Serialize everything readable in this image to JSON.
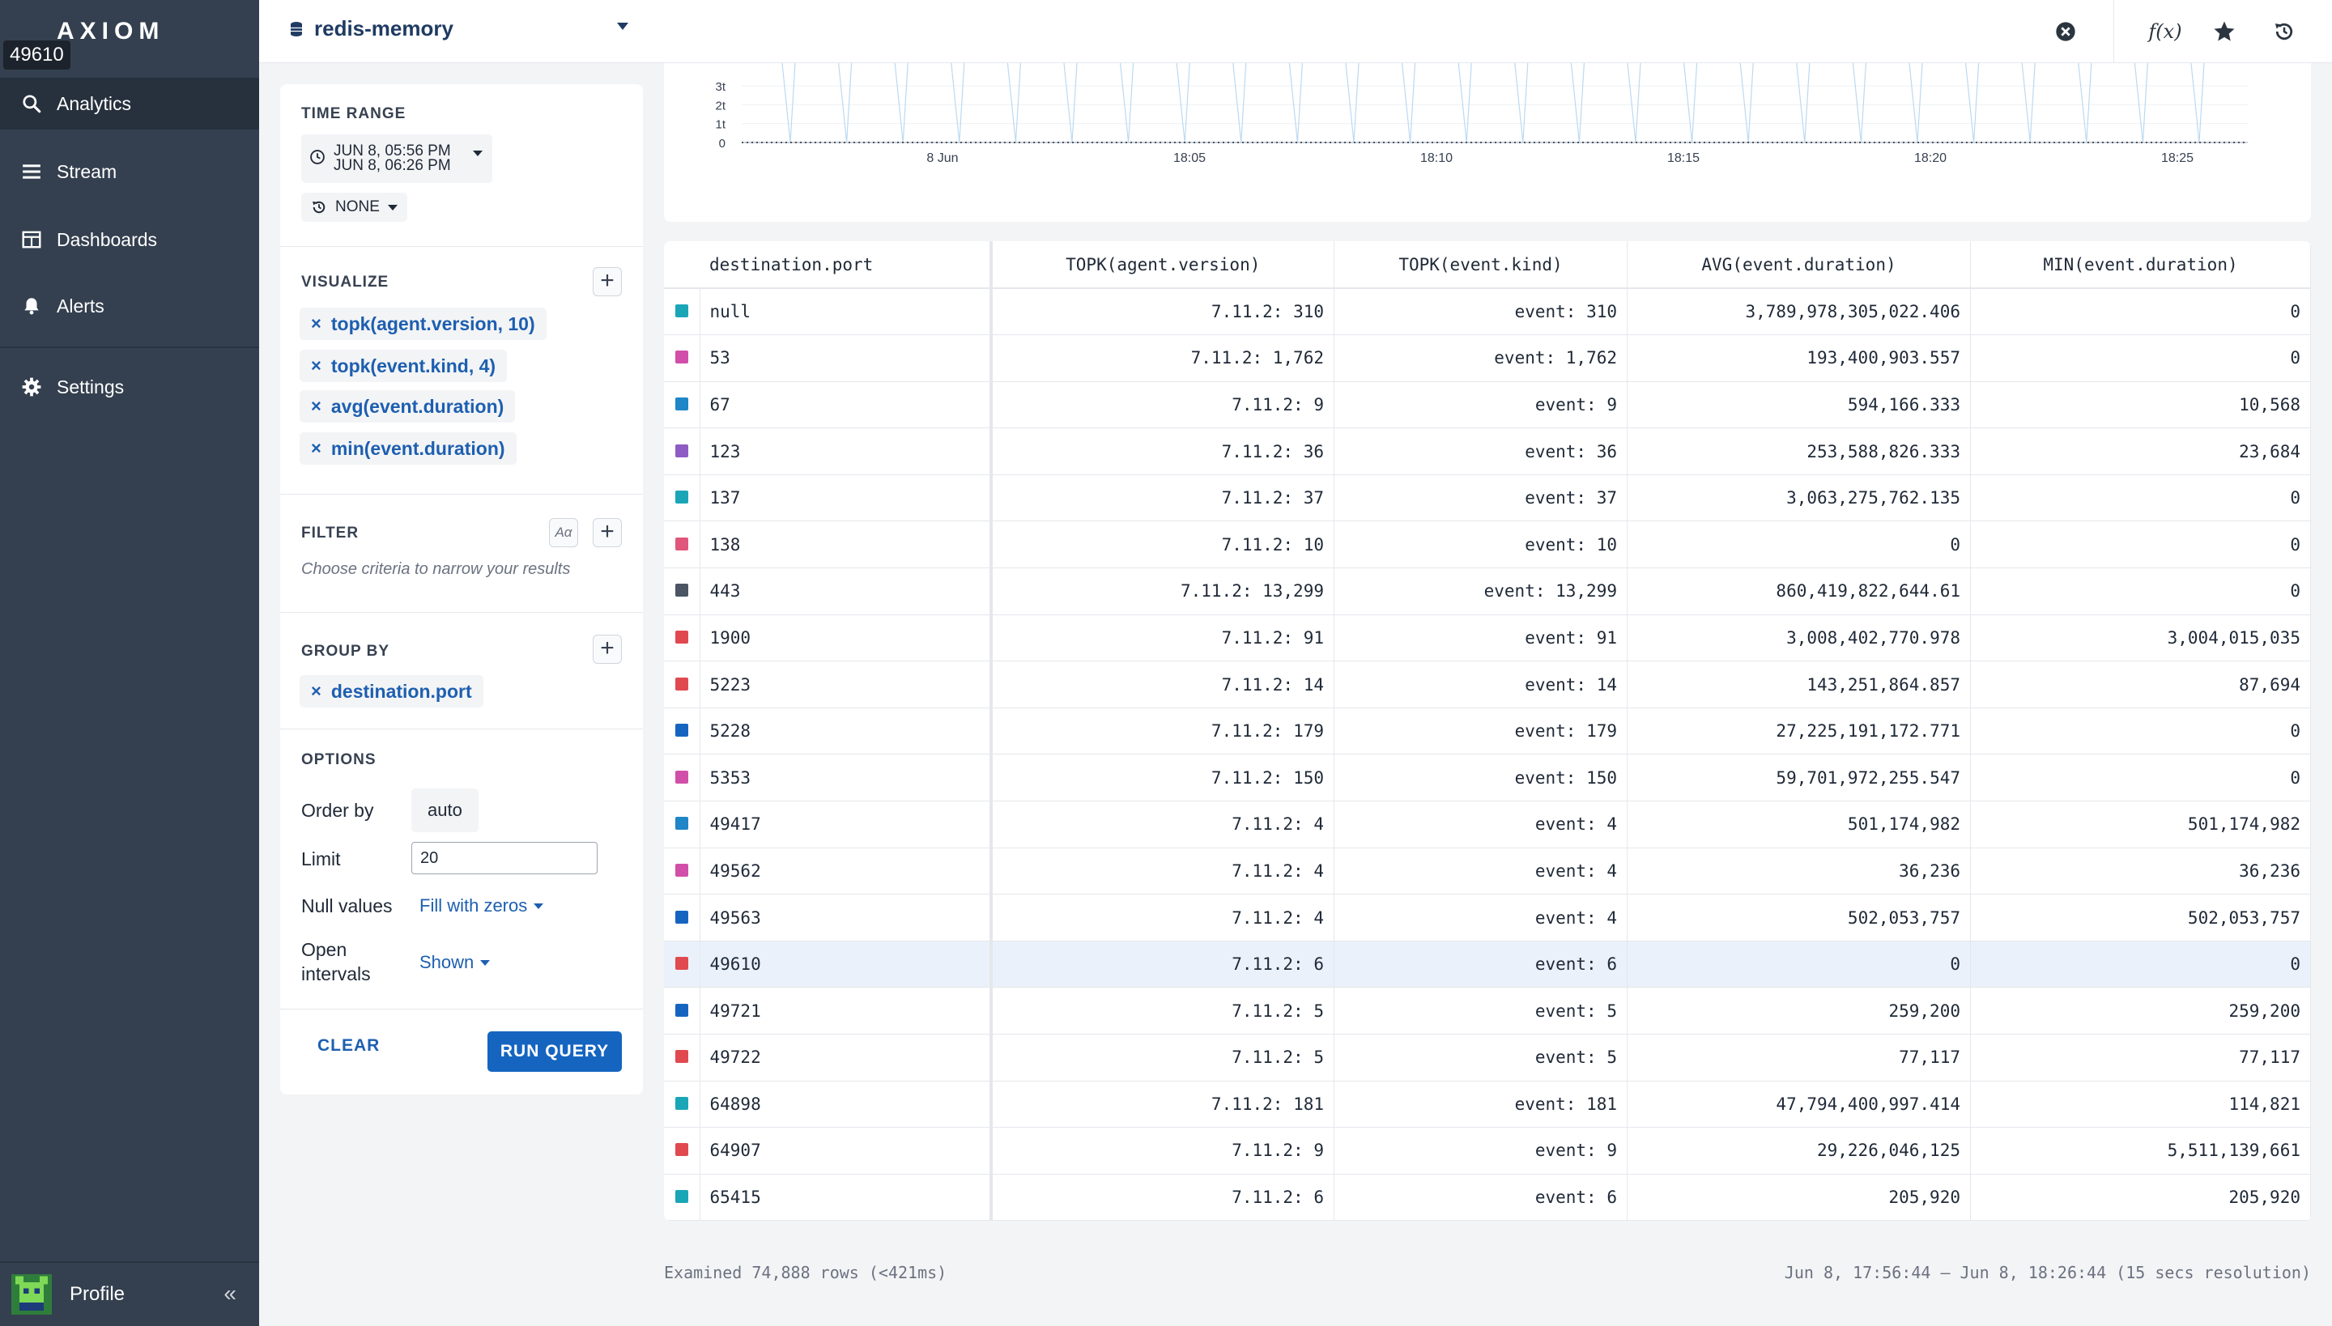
{
  "app": {
    "logo": "AXIOM",
    "tooltip": "49610"
  },
  "sidebar": {
    "items": [
      {
        "label": "Analytics",
        "icon": "search-icon",
        "active": true
      },
      {
        "label": "Stream",
        "icon": "stream-icon"
      },
      {
        "label": "Dashboards",
        "icon": "dashboard-icon"
      },
      {
        "label": "Alerts",
        "icon": "bell-icon"
      },
      {
        "label": "Settings",
        "icon": "gear-icon"
      }
    ],
    "profile_label": "Profile",
    "collapse_glyph": "«"
  },
  "header": {
    "dataset": "redis-memory",
    "icons": [
      "clear-icon",
      "function-icon",
      "star-icon",
      "history-icon"
    ],
    "function_glyph": "f(x)"
  },
  "query": {
    "time_range": {
      "title": "TIME RANGE",
      "start": "JUN 8, 05:56 PM",
      "end": "JUN 8, 06:26 PM",
      "compare": "NONE"
    },
    "visualize": {
      "title": "VISUALIZE",
      "items": [
        "topk(agent.version, 10)",
        "topk(event.kind, 4)",
        "avg(event.duration)",
        "min(event.duration)"
      ]
    },
    "filter": {
      "title": "FILTER",
      "case_label": "Aα",
      "hint": "Choose criteria to narrow your results"
    },
    "group_by": {
      "title": "GROUP BY",
      "items": [
        "destination.port"
      ]
    },
    "options": {
      "title": "OPTIONS",
      "order_by_label": "Order by",
      "order_by_value": "auto",
      "limit_label": "Limit",
      "limit_value": "20",
      "null_label": "Null values",
      "null_value": "Fill with zeros",
      "open_label_1": "Open",
      "open_label_2": "intervals",
      "open_value": "Shown"
    },
    "clear_label": "CLEAR",
    "run_label": "RUN QUERY"
  },
  "chart_data": {
    "type": "line",
    "y_ticks": [
      "3t",
      "2t",
      "1t",
      "0"
    ],
    "x_ticks": [
      "8 Jun",
      "18:05",
      "18:10",
      "18:15",
      "18:20",
      "18:25"
    ],
    "note": ""
  },
  "table": {
    "columns": [
      "destination.port",
      "TOPK(agent.version)",
      "TOPK(event.kind)",
      "AVG(event.duration)",
      "MIN(event.duration)"
    ],
    "rows": [
      {
        "color": "#1aa6b7",
        "port": "null",
        "agent": "7.11.2: 310",
        "kind": "event: 310",
        "avg": "3,789,978,305,022.406",
        "min": "0"
      },
      {
        "color": "#d14fa8",
        "port": "53",
        "agent": "7.11.2: 1,762",
        "kind": "event: 1,762",
        "avg": "193,400,903.557",
        "min": "0"
      },
      {
        "color": "#1f86c7",
        "port": "67",
        "agent": "7.11.2: 9",
        "kind": "event: 9",
        "avg": "594,166.333",
        "min": "10,568"
      },
      {
        "color": "#8e5cc2",
        "port": "123",
        "agent": "7.11.2: 36",
        "kind": "event: 36",
        "avg": "253,588,826.333",
        "min": "23,684"
      },
      {
        "color": "#1aa6b7",
        "port": "137",
        "agent": "7.11.2: 37",
        "kind": "event: 37",
        "avg": "3,063,275,762.135",
        "min": "0"
      },
      {
        "color": "#e0567a",
        "port": "138",
        "agent": "7.11.2: 10",
        "kind": "event: 10",
        "avg": "0",
        "min": "0"
      },
      {
        "color": "#4b5563",
        "port": "443",
        "agent": "7.11.2: 13,299",
        "kind": "event: 13,299",
        "avg": "860,419,822,644.61",
        "min": "0"
      },
      {
        "color": "#e0494f",
        "port": "1900",
        "agent": "7.11.2: 91",
        "kind": "event: 91",
        "avg": "3,008,402,770.978",
        "min": "3,004,015,035"
      },
      {
        "color": "#e0494f",
        "port": "5223",
        "agent": "7.11.2: 14",
        "kind": "event: 14",
        "avg": "143,251,864.857",
        "min": "87,694"
      },
      {
        "color": "#1565c0",
        "port": "5228",
        "agent": "7.11.2: 179",
        "kind": "event: 179",
        "avg": "27,225,191,172.771",
        "min": "0"
      },
      {
        "color": "#d14fa8",
        "port": "5353",
        "agent": "7.11.2: 150",
        "kind": "event: 150",
        "avg": "59,701,972,255.547",
        "min": "0"
      },
      {
        "color": "#1f86c7",
        "port": "49417",
        "agent": "7.11.2: 4",
        "kind": "event: 4",
        "avg": "501,174,982",
        "min": "501,174,982"
      },
      {
        "color": "#d14fa8",
        "port": "49562",
        "agent": "7.11.2: 4",
        "kind": "event: 4",
        "avg": "36,236",
        "min": "36,236"
      },
      {
        "color": "#1565c0",
        "port": "49563",
        "agent": "7.11.2: 4",
        "kind": "event: 4",
        "avg": "502,053,757",
        "min": "502,053,757"
      },
      {
        "color": "#e0494f",
        "port": "49610",
        "agent": "7.11.2: 6",
        "kind": "event: 6",
        "avg": "0",
        "min": "0",
        "highlight": true
      },
      {
        "color": "#1565c0",
        "port": "49721",
        "agent": "7.11.2: 5",
        "kind": "event: 5",
        "avg": "259,200",
        "min": "259,200"
      },
      {
        "color": "#e0494f",
        "port": "49722",
        "agent": "7.11.2: 5",
        "kind": "event: 5",
        "avg": "77,117",
        "min": "77,117"
      },
      {
        "color": "#1aa6b7",
        "port": "64898",
        "agent": "7.11.2: 181",
        "kind": "event: 181",
        "avg": "47,794,400,997.414",
        "min": "114,821"
      },
      {
        "color": "#e0494f",
        "port": "64907",
        "agent": "7.11.2: 9",
        "kind": "event: 9",
        "avg": "29,226,046,125",
        "min": "5,511,139,661"
      },
      {
        "color": "#1aa6b7",
        "port": "65415",
        "agent": "7.11.2: 6",
        "kind": "event: 6",
        "avg": "205,920",
        "min": "205,920"
      }
    ]
  },
  "footer": {
    "examined": "Examined 74,888 rows (<421ms)",
    "range": "Jun 8, 17:56:44 – Jun 8, 18:26:44 (15 secs resolution)"
  }
}
